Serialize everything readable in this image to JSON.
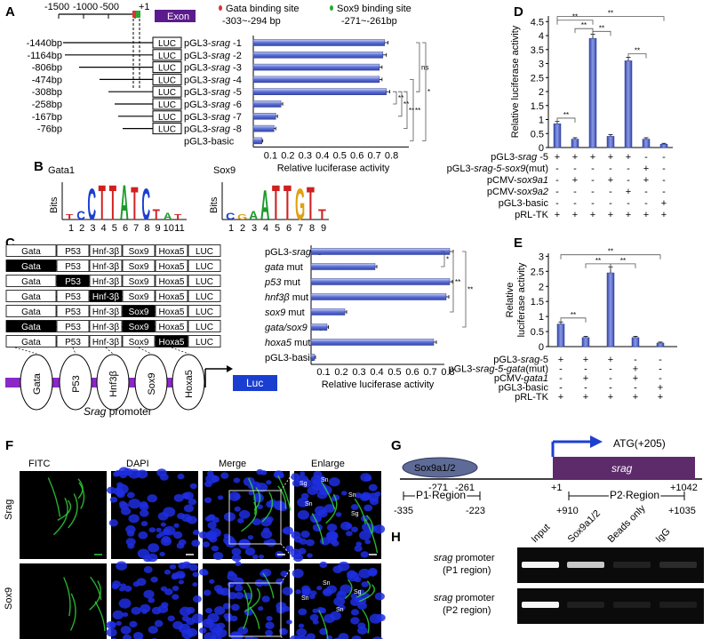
{
  "panels": {
    "A": "A",
    "B": "B",
    "C": "C",
    "D": "D",
    "E": "E",
    "F": "F",
    "G": "G",
    "H": "H"
  },
  "panelA": {
    "scale_ticks": [
      "-1500",
      "-1000",
      "-500",
      "+1"
    ],
    "exon_label": "Exon",
    "legend_gata": "Gata binding site",
    "legend_gata_range": "-303~-294 bp",
    "legend_sox9": "Sox9 binding site",
    "legend_sox9_range": "-271~-261bp",
    "luc": "LUC",
    "constructs": [
      {
        "pos": "-1440bp",
        "name_pre": "pGL3-",
        "name_it": "srag",
        "name_post": " -1"
      },
      {
        "pos": "-1164bp",
        "name_pre": "pGL3-",
        "name_it": "srag",
        "name_post": " -2"
      },
      {
        "pos": "-806bp",
        "name_pre": "pGL3-",
        "name_it": "srag",
        "name_post": " -3"
      },
      {
        "pos": "-474bp",
        "name_pre": "pGL3-",
        "name_it": "srag",
        "name_post": " -4"
      },
      {
        "pos": "-308bp",
        "name_pre": "pGL3-",
        "name_it": "srag",
        "name_post": " -5"
      },
      {
        "pos": "-258bp",
        "name_pre": "pGL3-",
        "name_it": "srag",
        "name_post": " -6"
      },
      {
        "pos": "-167bp",
        "name_pre": "pGL3-",
        "name_it": "srag",
        "name_post": " -7"
      },
      {
        "pos": "-76bp",
        "name_pre": "pGL3-",
        "name_it": "srag",
        "name_post": " -8"
      },
      {
        "pos": "",
        "name_pre": "pGL3-basic",
        "name_it": "",
        "name_post": ""
      }
    ],
    "xticks": [
      "0.1",
      "0.2",
      "0.3",
      "0.4",
      "0.5",
      "0.6",
      "0.7",
      "0.8"
    ],
    "xlabel": "Relative luciferase activity",
    "sig": [
      "**",
      "**",
      "**",
      "**",
      "ns",
      "*"
    ]
  },
  "panelB": {
    "gata_title": "Gata1",
    "sox_title": "Sox9",
    "ylabel": "Bits",
    "gata_motif": "CTTATCT",
    "sox_motif": "ATTGT",
    "gata_positions": [
      "1",
      "2",
      "3",
      "4",
      "5",
      "6",
      "7",
      "8",
      "9",
      "10",
      "11"
    ],
    "sox_positions": [
      "1",
      "2",
      "3",
      "4",
      "5",
      "6",
      "7",
      "8",
      "9"
    ]
  },
  "panelC": {
    "box_labels": [
      "Gata",
      "P53",
      "Hnf-3β",
      "Sox9",
      "Hoxa5",
      "LUC"
    ],
    "rows": [
      {
        "pre": "pGL3-",
        "it": "srag",
        "post": " -5",
        "mut": []
      },
      {
        "pre": "",
        "it": "gata",
        "post": " mut",
        "mut": [
          0
        ]
      },
      {
        "pre": "",
        "it": "p53",
        "post": " mut",
        "mut": [
          1
        ]
      },
      {
        "pre": "",
        "it": "hnf3β",
        "post": " mut",
        "mut": [
          2
        ]
      },
      {
        "pre": "",
        "it": "sox9",
        "post": " mut",
        "mut": [
          3
        ]
      },
      {
        "pre": "",
        "it": "gata/sox9",
        "post": " mut",
        "mut": [
          0,
          3
        ]
      },
      {
        "pre": "",
        "it": "hoxa5",
        "post": " mut",
        "mut": [
          4
        ]
      },
      {
        "pre": "pGL3-basic",
        "it": "",
        "post": "",
        "mut": []
      }
    ],
    "ovals": [
      "Gata",
      "P53",
      "Hnf3β",
      "Sox9",
      "Hoxa5"
    ],
    "luc": "Luc",
    "promoter_label": "Srag",
    "promoter_suffix": " promoter",
    "xticks": [
      "0.1",
      "0.2",
      "0.3",
      "0.4",
      "0.5",
      "0.6",
      "0.7",
      "0.8"
    ],
    "xlabel": "Relative luciferase activity",
    "sig": [
      "*",
      "**",
      "**"
    ]
  },
  "panelD": {
    "ylabel": "Relative luciferase activity",
    "yticks": [
      "0",
      "0.5",
      "1",
      "1.5",
      "2",
      "2.5",
      "3",
      "3.5",
      "4",
      "4.5"
    ],
    "row_labels": [
      {
        "pre": "pGL3-",
        "it": "srag",
        "post": " -5",
        "marks": [
          "+",
          "+",
          "+",
          "+",
          "+",
          "-",
          "-"
        ]
      },
      {
        "pre": "pGL3-",
        "it": "srag-5-sox9",
        "post": "(mut)",
        "marks": [
          "-",
          "-",
          "-",
          "-",
          "-",
          "+",
          "-"
        ]
      },
      {
        "pre": "pCMV-",
        "it": "sox9a1",
        "post": "",
        "marks": [
          "-",
          "+",
          "-",
          "+",
          "-",
          "+",
          "-"
        ]
      },
      {
        "pre": "pCMV-",
        "it": "sox9a2",
        "post": "",
        "marks": [
          "-",
          "-",
          "-",
          "-",
          "+",
          "-",
          "-"
        ]
      },
      {
        "pre": "pGL3-basic",
        "it": "",
        "post": "",
        "marks": [
          "-",
          "-",
          "-",
          "-",
          "-",
          "-",
          "+"
        ]
      },
      {
        "pre": "pRL-TK",
        "it": "",
        "post": "",
        "marks": [
          "+",
          "+",
          "+",
          "+",
          "+",
          "+",
          "+"
        ]
      }
    ],
    "sig": [
      "**",
      "**",
      "**",
      "**",
      "**",
      "**"
    ]
  },
  "panelE": {
    "ylabel_1": "Relative",
    "ylabel_2": "luciferase activity",
    "yticks": [
      "0",
      "0.5",
      "1",
      "1.5",
      "2",
      "2.5",
      "3"
    ],
    "row_labels": [
      {
        "pre": "pGL3-",
        "it": "srag",
        "post": "-5",
        "marks": [
          "+",
          "+",
          "+",
          "-",
          "-"
        ]
      },
      {
        "pre": "pGL3-",
        "it": "srag-5-gata",
        "post": "(mut)",
        "marks": [
          "-",
          "-",
          "-",
          "+",
          "-"
        ]
      },
      {
        "pre": "pCMV-",
        "it": "gata1",
        "post": "",
        "marks": [
          "-",
          "+",
          "-",
          "+",
          "-"
        ]
      },
      {
        "pre": "pGL3-basic",
        "it": "",
        "post": "",
        "marks": [
          "-",
          "-",
          "-",
          "-",
          "+"
        ]
      },
      {
        "pre": "pRL-TK",
        "it": "",
        "post": "",
        "marks": [
          "+",
          "+",
          "+",
          "+",
          "+"
        ]
      }
    ],
    "sig": [
      "**",
      "**",
      "**",
      "**"
    ]
  },
  "panelF": {
    "col_titles": [
      "FITC",
      "DAPI",
      "Merge",
      "Enlarge"
    ],
    "row_titles": [
      "Srag",
      "Sox9"
    ],
    "enlarge_labels_top": [
      "Sg",
      "Sn",
      "Sn",
      "Sn",
      "Sg"
    ],
    "enlarge_labels_bottom": [
      "Sn",
      "Sn",
      "Sn",
      "Sg"
    ]
  },
  "panelG": {
    "atg": "ATG(+205)",
    "factor": "Sox9a1/2",
    "gene": "srag",
    "m271": "-271",
    "m261": "-261",
    "p1": "+1",
    "p1042": "+1042",
    "p1_region": "P1 Region",
    "p2_region": "P2 Region",
    "m335": "-335",
    "m223": "-223",
    "p910": "+910",
    "p1035": "+1035"
  },
  "panelH": {
    "lanes": [
      "Input",
      "Sox9a1/2",
      "Beads only",
      "IgG"
    ],
    "row1_it": "srag",
    "row1_rest": " promoter",
    "row1_sub": "(P1 region)",
    "row2_it": "srag",
    "row2_rest": " promoter",
    "row2_sub": "(P2 region)",
    "band_intensity_p1": [
      1.0,
      0.8,
      0.06,
      0.1
    ],
    "band_intensity_p2": [
      1.0,
      0.05,
      0.04,
      0.04
    ]
  },
  "chart_data": [
    {
      "type": "bar",
      "orientation": "horizontal",
      "categories": [
        "pGL3-srag -1",
        "pGL3-srag -2",
        "pGL3-srag -3",
        "pGL3-srag -4",
        "pGL3-srag -5",
        "pGL3-srag -6",
        "pGL3-srag -7",
        "pGL3-srag -8",
        "pGL3-basic"
      ],
      "values": [
        0.76,
        0.75,
        0.73,
        0.73,
        0.77,
        0.16,
        0.13,
        0.12,
        0.05
      ],
      "errors": [
        0.02,
        0.02,
        0.015,
        0.015,
        0.02,
        0.01,
        0.01,
        0.01,
        0.005
      ],
      "xlabel": "Relative luciferase activity",
      "xlim": [
        0,
        0.9
      ]
    },
    {
      "type": "bar",
      "orientation": "horizontal",
      "categories": [
        "pGL3-srag -5",
        "gata mut",
        "p53 mut",
        "hnf3β mut",
        "sox9 mut",
        "gata/sox9 mut",
        "hoxa5 mut",
        "pGL3-basic"
      ],
      "values": [
        0.78,
        0.36,
        0.78,
        0.76,
        0.19,
        0.09,
        0.69,
        0.02
      ],
      "errors": [
        0.02,
        0.01,
        0.015,
        0.015,
        0.01,
        0.008,
        0.015,
        0.005
      ],
      "xlabel": "Relative luciferase activity",
      "xlim": [
        0,
        0.9
      ]
    },
    {
      "type": "bar",
      "values": [
        0.85,
        0.3,
        3.9,
        0.4,
        3.1,
        0.3,
        0.12
      ],
      "errors": [
        0.08,
        0.05,
        0.15,
        0.06,
        0.12,
        0.05,
        0.03
      ],
      "ylabel": "Relative luciferase activity",
      "ylim": [
        0,
        4.7
      ]
    },
    {
      "type": "bar",
      "values": [
        0.75,
        0.3,
        2.45,
        0.3,
        0.12
      ],
      "errors": [
        0.07,
        0.04,
        0.2,
        0.04,
        0.03
      ],
      "ylabel": "Relative luciferase activity",
      "ylim": [
        0,
        3.1
      ]
    }
  ]
}
